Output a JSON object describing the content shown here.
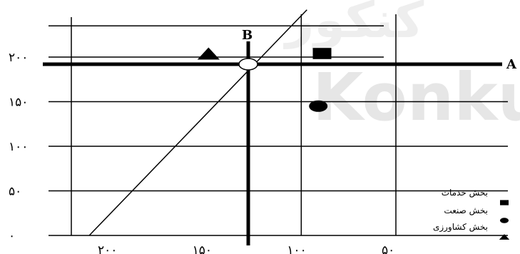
{
  "watermark": {
    "brand_latin": "Konku",
    "brand_persian": "کنکور"
  },
  "chart_data": {
    "type": "scatter",
    "x_axis": {
      "ticks": [
        200,
        150,
        100,
        50
      ],
      "tick_labels": [
        "۲۰۰",
        "۱۵۰",
        "۱۰۰",
        "۵۰"
      ],
      "reversed": true,
      "range": [
        220,
        0
      ]
    },
    "y_axis": {
      "ticks": [
        200,
        150,
        100,
        50,
        0
      ],
      "tick_labels": [
        "۲۰۰",
        "۱۵۰",
        "۱۰۰",
        "۵۰",
        "۰"
      ],
      "range": [
        0,
        235
      ]
    },
    "grid": true,
    "lines": [
      {
        "id": "A",
        "label": "A",
        "kind": "horizontal",
        "y": 192
      },
      {
        "id": "B",
        "label": "B",
        "kind": "vertical",
        "x": 128
      },
      {
        "id": "diagonal",
        "kind": "diagonal",
        "from": [
          212,
          0
        ],
        "to": [
          97,
          253
        ]
      }
    ],
    "intersection": {
      "x": 128,
      "y": 192
    },
    "series": [
      {
        "name": "بخش خدمات",
        "marker": "square",
        "x": 89,
        "y": 204
      },
      {
        "name": "بخش صنعت",
        "marker": "circle",
        "x": 91,
        "y": 145
      },
      {
        "name": "بخش کشاورزی",
        "marker": "triangle",
        "x": 149,
        "y": 204
      }
    ],
    "legend_position": "bottom-right"
  }
}
